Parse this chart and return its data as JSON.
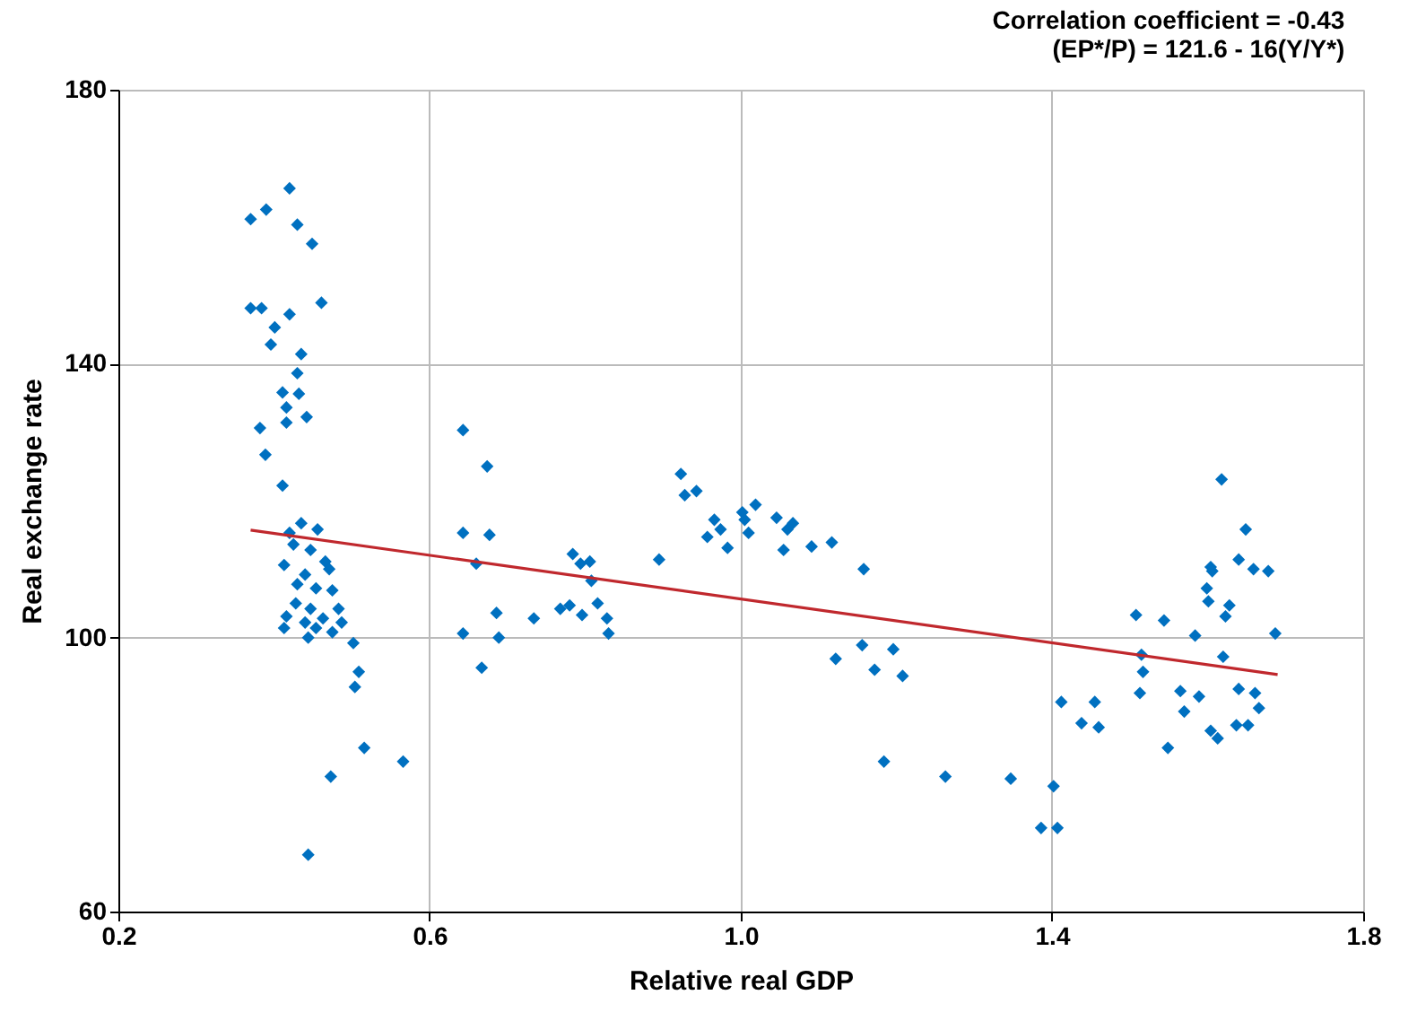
{
  "chart_data": {
    "type": "scatter",
    "xlabel": "Relative real GDP",
    "ylabel": "Real exchange rate",
    "annotations": [
      "Correlation coefficient = -0.43",
      "(EP*/P) = 121.6 - 16(Y/Y*)"
    ],
    "xlim": [
      0.2,
      1.8
    ],
    "xticks": [
      0.2,
      0.6,
      {
        "value": 1,
        "label": "1.0"
      },
      1.4,
      1.8
    ],
    "ylim": [
      60,
      180
    ],
    "yticks": [
      60,
      100,
      140,
      180
    ],
    "grid": true,
    "series": [
      {
        "color": "#0070c0",
        "marker": "diamond",
        "x": [
          0.42,
          0.37,
          0.39,
          0.43,
          0.449,
          0.37,
          0.384,
          0.42,
          0.461,
          0.401,
          0.396,
          0.435,
          0.43,
          0.411,
          0.432,
          0.416,
          0.416,
          0.442,
          0.382,
          0.389,
          0.411,
          0.435,
          0.456,
          0.42,
          0.425,
          0.447,
          0.413,
          0.466,
          0.471,
          0.44,
          0.43,
          0.475,
          0.454,
          0.428,
          0.483,
          0.447,
          0.416,
          0.463,
          0.487,
          0.413,
          0.44,
          0.454,
          0.444,
          0.475,
          0.502,
          0.509,
          0.504,
          0.516,
          0.566,
          0.473,
          0.444,
          0.643,
          0.674,
          0.643,
          0.677,
          0.66,
          0.643,
          0.667,
          0.686,
          0.689,
          0.734,
          0.784,
          0.794,
          0.806,
          0.808,
          0.768,
          0.78,
          0.796,
          0.816,
          0.828,
          0.83,
          0.895,
          0.923,
          0.928,
          0.943,
          0.966,
          0.974,
          0.957,
          0.983,
          1.002,
          1.005,
          1.01,
          1.019,
          1.046,
          1.06,
          1.067,
          1.055,
          1.091,
          1.117,
          1.158,
          1.122,
          1.156,
          1.172,
          1.196,
          1.208,
          1.184,
          1.263,
          1.347,
          1.402,
          1.386,
          1.407,
          1.412,
          1.455,
          1.438,
          1.46,
          1.508,
          1.515,
          1.517,
          1.513,
          1.544,
          1.549,
          1.565,
          1.57,
          1.589,
          1.584,
          1.599,
          1.601,
          1.604,
          1.606,
          1.628,
          1.623,
          1.618,
          1.649,
          1.64,
          1.659,
          1.678,
          1.687,
          1.62,
          1.64,
          1.661,
          1.666,
          1.604,
          1.613,
          1.637,
          1.652
        ],
        "values": [
          165.6,
          161.1,
          162.5,
          160.3,
          157.5,
          148.1,
          148.1,
          147.2,
          148.9,
          145.3,
          142.8,
          141.4,
          138.6,
          135.8,
          135.6,
          133.6,
          131.4,
          132.2,
          130.6,
          126.7,
          122.2,
          116.7,
          115.8,
          115.3,
          113.6,
          112.8,
          110.6,
          111.1,
          110.0,
          109.2,
          107.8,
          106.9,
          107.2,
          105.0,
          104.2,
          104.2,
          103.1,
          102.8,
          102.2,
          101.4,
          102.2,
          101.4,
          100.0,
          100.8,
          99.2,
          95.0,
          92.8,
          83.9,
          81.9,
          79.7,
          68.3,
          130.3,
          125.0,
          115.3,
          115.0,
          110.8,
          100.6,
          95.6,
          103.6,
          100.0,
          102.8,
          112.2,
          110.8,
          111.1,
          108.3,
          104.2,
          104.7,
          103.3,
          105.0,
          102.8,
          100.6,
          111.4,
          123.9,
          120.8,
          121.4,
          117.2,
          115.8,
          114.7,
          113.1,
          118.3,
          117.2,
          115.3,
          119.4,
          117.5,
          115.8,
          116.7,
          112.8,
          113.3,
          113.9,
          110.0,
          96.9,
          98.9,
          95.3,
          98.3,
          94.4,
          81.9,
          79.7,
          79.4,
          78.3,
          72.2,
          72.2,
          90.6,
          90.6,
          87.5,
          86.9,
          103.3,
          97.5,
          95.0,
          91.9,
          102.5,
          83.9,
          92.2,
          89.2,
          91.4,
          100.3,
          107.2,
          105.3,
          110.3,
          109.7,
          104.7,
          103.1,
          123.1,
          115.8,
          111.4,
          110.0,
          109.7,
          100.6,
          97.2,
          92.5,
          91.9,
          89.7,
          86.4,
          85.3,
          87.2,
          87.2
        ]
      },
      {
        "type": "line",
        "color": "#c0282d",
        "marker": "none",
        "line_style": "solid",
        "x": [
          0.37,
          1.69
        ],
        "values": [
          115.7,
          94.6
        ]
      }
    ]
  }
}
